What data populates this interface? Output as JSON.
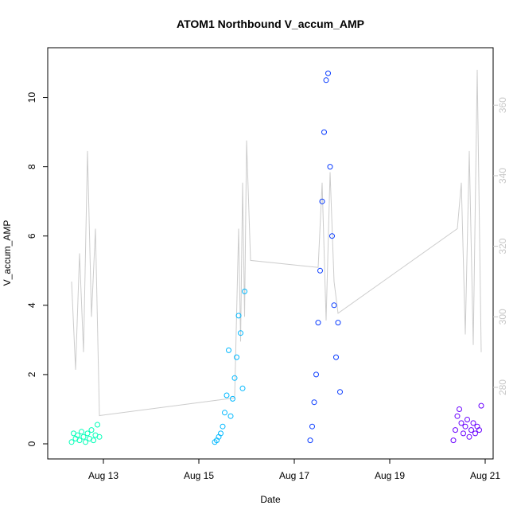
{
  "chart_data": {
    "type": "scatter",
    "title": "ATOM1 Northbound V_accum_AMP",
    "xlabel": "Date",
    "ylabel": "V_accum_AMP",
    "x_ticks": [
      "Aug 13",
      "Aug 15",
      "Aug 17",
      "Aug 19",
      "Aug 21"
    ],
    "y_ticks": [
      "0",
      "2",
      "4",
      "6",
      "8",
      "10"
    ],
    "y2_ticks": [
      "280",
      "300",
      "320",
      "340",
      "360"
    ],
    "xlim": [
      "2023-08-12 00:00",
      "2023-08-21 00:00"
    ],
    "ylim": [
      0,
      11
    ],
    "y2lim": [
      264,
      372
    ],
    "grid": false,
    "colors": {
      "cluster1": "#00ffb8",
      "cluster2": "#00b8ff",
      "cluster3": "#0a3cff",
      "cluster4": "#6a00ff",
      "voltage_line": "#cccccc",
      "right_axis": "#c8c8c8"
    },
    "series": [
      {
        "kind": "points",
        "color": "#00ffb8",
        "x": [
          "Aug 12 08:00",
          "Aug 12 09:00",
          "Aug 12 10:00",
          "Aug 12 11:00",
          "Aug 12 12:00",
          "Aug 12 13:00",
          "Aug 12 14:00",
          "Aug 12 15:00",
          "Aug 12 16:00",
          "Aug 12 17:00",
          "Aug 12 18:00",
          "Aug 12 19:00",
          "Aug 12 20:00",
          "Aug 12 21:00",
          "Aug 12 22:00"
        ],
        "y": [
          0.05,
          0.3,
          0.15,
          0.25,
          0.1,
          0.35,
          0.2,
          0.05,
          0.3,
          0.15,
          0.4,
          0.1,
          0.25,
          0.55,
          0.2
        ]
      },
      {
        "kind": "points",
        "color": "#00b8ff",
        "x": [
          "Aug 15 08:00",
          "Aug 15 09:00",
          "Aug 15 10:00",
          "Aug 15 11:00",
          "Aug 15 12:00",
          "Aug 15 13:00",
          "Aug 15 14:00",
          "Aug 15 15:00",
          "Aug 15 16:00",
          "Aug 15 17:00",
          "Aug 15 18:00",
          "Aug 15 19:00",
          "Aug 15 20:00",
          "Aug 15 21:00",
          "Aug 15 22:00",
          "Aug 15 23:00"
        ],
        "y": [
          0.05,
          0.1,
          0.2,
          0.3,
          0.5,
          0.9,
          1.4,
          2.7,
          0.8,
          1.3,
          1.9,
          2.5,
          3.7,
          3.2,
          1.6,
          4.4
        ]
      },
      {
        "kind": "points",
        "color": "#0a3cff",
        "x": [
          "Aug 17 08:00",
          "Aug 17 09:00",
          "Aug 17 10:00",
          "Aug 17 11:00",
          "Aug 17 12:00",
          "Aug 17 13:00",
          "Aug 17 14:00",
          "Aug 17 15:00",
          "Aug 17 16:00",
          "Aug 17 17:00",
          "Aug 17 18:00",
          "Aug 17 19:00",
          "Aug 17 20:00",
          "Aug 17 21:00",
          "Aug 17 22:00",
          "Aug 17 23:00"
        ],
        "y": [
          0.1,
          0.5,
          1.2,
          2.0,
          3.5,
          5.0,
          7.0,
          9.0,
          10.5,
          10.7,
          8.0,
          6.0,
          4.0,
          2.5,
          3.5,
          1.5
        ]
      },
      {
        "kind": "points",
        "color": "#6a00ff",
        "x": [
          "Aug 20 08:00",
          "Aug 20 09:00",
          "Aug 20 10:00",
          "Aug 20 11:00",
          "Aug 20 12:00",
          "Aug 20 13:00",
          "Aug 20 14:00",
          "Aug 20 15:00",
          "Aug 20 16:00",
          "Aug 20 17:00",
          "Aug 20 18:00",
          "Aug 20 19:00",
          "Aug 20 20:00",
          "Aug 20 21:00",
          "Aug 20 22:00"
        ],
        "y": [
          0.1,
          0.4,
          0.8,
          1.0,
          0.6,
          0.3,
          0.5,
          0.7,
          0.2,
          0.4,
          0.6,
          0.3,
          0.5,
          0.4,
          1.1
        ]
      },
      {
        "kind": "line",
        "axis": "right",
        "color": "#cccccc",
        "x": [
          "Aug 12 08:00",
          "Aug 12 10:00",
          "Aug 12 12:00",
          "Aug 12 14:00",
          "Aug 12 16:00",
          "Aug 12 18:00",
          "Aug 12 20:00",
          "Aug 12 22:00",
          "Aug 15 18:00",
          "Aug 15 20:00",
          "Aug 15 21:00",
          "Aug 15 22:00",
          "Aug 15 23:00",
          "Aug 16 00:00",
          "Aug 16 02:00",
          "Aug 17 12:00",
          "Aug 17 14:00",
          "Aug 17 16:00",
          "Aug 17 18:00",
          "Aug 17 20:00",
          "Aug 17 22:00",
          "Aug 20 10:00",
          "Aug 20 12:00",
          "Aug 20 14:00",
          "Aug 20 16:00",
          "Aug 20 18:00",
          "Aug 20 20:00",
          "Aug 20 22:00"
        ],
        "y": [
          310,
          285,
          318,
          290,
          347,
          300,
          325,
          272,
          277,
          325,
          293,
          338,
          300,
          350,
          316,
          314,
          338,
          299,
          341,
          310,
          301,
          325,
          338,
          295,
          347,
          292,
          370,
          290
        ]
      }
    ]
  }
}
